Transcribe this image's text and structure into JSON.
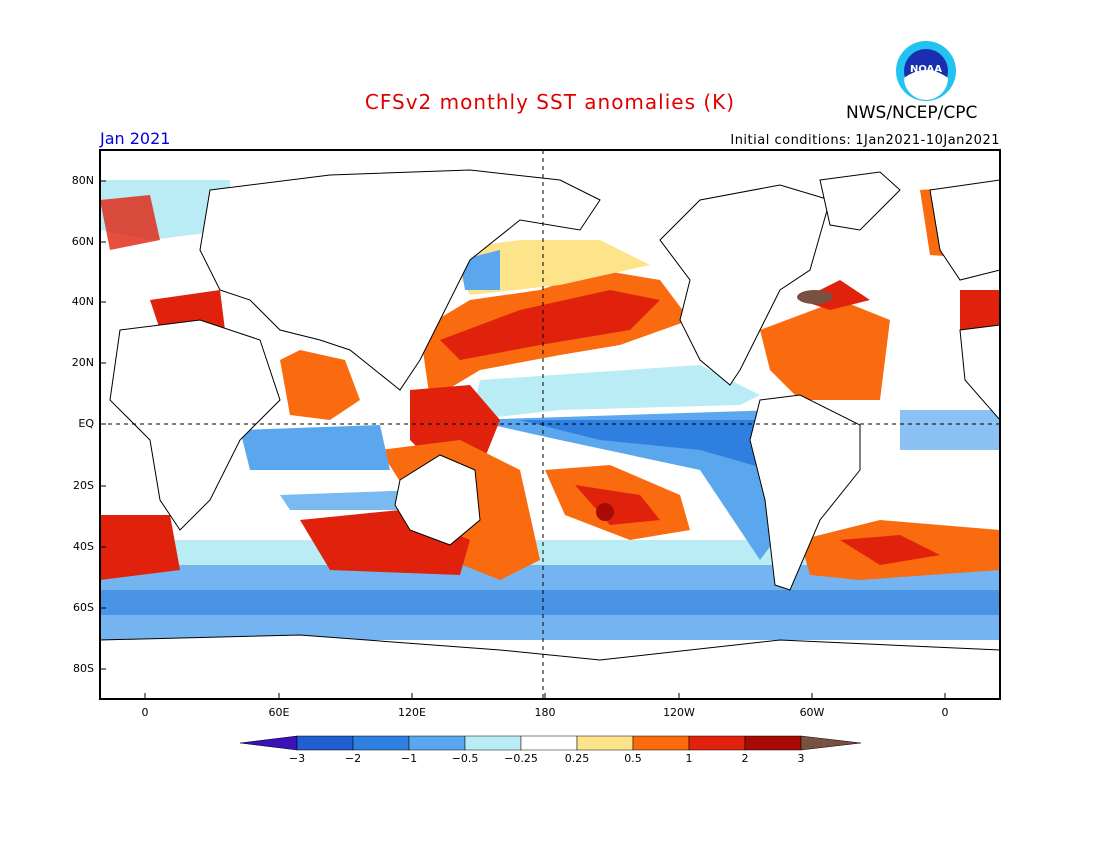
{
  "header": {
    "title": "CFSv2 monthly SST anomalies (K)",
    "agency": "NWS/NCEP/CPC",
    "logo_text": "NOAA",
    "month": "Jan 2021",
    "init_label": "Initial conditions:",
    "init_range": "1Jan2021-10Jan2021"
  },
  "axes": {
    "lat_labels": [
      "80N",
      "60N",
      "40N",
      "20N",
      "EQ",
      "20S",
      "40S",
      "60S",
      "80S"
    ],
    "lon_labels": [
      "0",
      "60E",
      "120E",
      "180",
      "120W",
      "60W",
      "0"
    ]
  },
  "colorbar": {
    "labels": [
      "-3",
      "-2",
      "-1",
      "-0.5",
      "-0.25",
      "0.25",
      "0.5",
      "1",
      "2",
      "3"
    ],
    "colors": [
      "#3a12b8",
      "#1f5fd0",
      "#2f7fe0",
      "#5aa7ee",
      "#b9ecf4",
      "#ffffff",
      "#fde38a",
      "#fa6a0f",
      "#e0220c",
      "#a80a06",
      "#7a5040"
    ]
  }
}
